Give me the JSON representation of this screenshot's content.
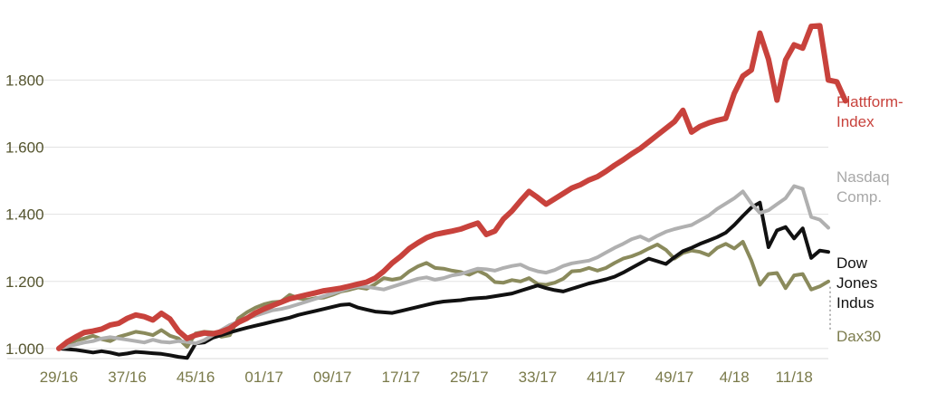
{
  "chart_data": {
    "type": "line",
    "title": "",
    "xlabel": "",
    "ylabel": "",
    "ylim": [
      970,
      1990
    ],
    "y_ticks": [
      1000,
      1200,
      1400,
      1600,
      1800
    ],
    "y_tick_labels": [
      "1.000",
      "1.200",
      "1.400",
      "1.600",
      "1.800"
    ],
    "x_tick_labels": [
      "29/16",
      "37/16",
      "45/16",
      "01/17",
      "09/17",
      "17/17",
      "25/17",
      "33/17",
      "41/17",
      "49/17",
      "4/18",
      "11/18"
    ],
    "x_tick_index": [
      0,
      8,
      16,
      24,
      32,
      40,
      48,
      56,
      64,
      72,
      79,
      86
    ],
    "grid": "horizontal",
    "legend": "right, labels at line ends",
    "series": [
      {
        "name": "Dax30",
        "label_lines": [
          "Dax30"
        ],
        "color": "#8a8a5c",
        "width": 4,
        "values": [
          1000,
          1012,
          1024,
          1030,
          1038,
          1028,
          1022,
          1035,
          1042,
          1050,
          1046,
          1040,
          1055,
          1038,
          1030,
          1005,
          1045,
          1050,
          1048,
          1035,
          1040,
          1090,
          1108,
          1122,
          1132,
          1138,
          1140,
          1160,
          1150,
          1145,
          1150,
          1152,
          1160,
          1170,
          1175,
          1182,
          1178,
          1192,
          1210,
          1205,
          1210,
          1230,
          1245,
          1255,
          1240,
          1238,
          1232,
          1228,
          1220,
          1232,
          1220,
          1198,
          1196,
          1204,
          1200,
          1210,
          1192,
          1190,
          1196,
          1208,
          1230,
          1232,
          1240,
          1232,
          1240,
          1255,
          1268,
          1275,
          1285,
          1298,
          1310,
          1294,
          1268,
          1285,
          1292,
          1288,
          1278,
          1300,
          1312,
          1298,
          1318,
          1262,
          1190,
          1222,
          1225,
          1180,
          1218,
          1222,
          1176,
          1185,
          1200
        ]
      },
      {
        "name": "Dow Jones Indus",
        "label_lines": [
          "Dow",
          "Jones",
          "Indus"
        ],
        "color": "#111111",
        "width": 4,
        "values": [
          1000,
          998,
          996,
          992,
          988,
          992,
          988,
          982,
          985,
          990,
          988,
          986,
          984,
          980,
          975,
          972,
          1015,
          1018,
          1032,
          1040,
          1048,
          1055,
          1062,
          1068,
          1074,
          1080,
          1086,
          1092,
          1100,
          1106,
          1112,
          1118,
          1124,
          1130,
          1132,
          1122,
          1116,
          1110,
          1108,
          1106,
          1112,
          1118,
          1124,
          1130,
          1136,
          1140,
          1142,
          1144,
          1148,
          1150,
          1152,
          1156,
          1160,
          1164,
          1172,
          1180,
          1188,
          1180,
          1174,
          1170,
          1178,
          1186,
          1194,
          1200,
          1206,
          1214,
          1226,
          1240,
          1254,
          1268,
          1260,
          1252,
          1272,
          1290,
          1300,
          1312,
          1322,
          1332,
          1345,
          1368,
          1395,
          1420,
          1435,
          1302,
          1352,
          1362,
          1328,
          1358,
          1270,
          1292,
          1288
        ]
      },
      {
        "name": "Nasdaq Comp.",
        "label_lines": [
          "Nasdaq",
          "Comp."
        ],
        "color": "#b0b0b0",
        "width": 4,
        "values": [
          1000,
          1006,
          1012,
          1018,
          1022,
          1030,
          1034,
          1030,
          1026,
          1022,
          1018,
          1026,
          1020,
          1018,
          1022,
          1020,
          1015,
          1025,
          1040,
          1055,
          1070,
          1080,
          1090,
          1098,
          1106,
          1114,
          1118,
          1124,
          1132,
          1140,
          1148,
          1156,
          1164,
          1172,
          1180,
          1186,
          1184,
          1180,
          1176,
          1184,
          1192,
          1200,
          1208,
          1212,
          1205,
          1210,
          1218,
          1222,
          1230,
          1238,
          1236,
          1232,
          1240,
          1246,
          1250,
          1238,
          1230,
          1226,
          1234,
          1246,
          1254,
          1258,
          1262,
          1272,
          1286,
          1300,
          1312,
          1326,
          1334,
          1322,
          1336,
          1348,
          1356,
          1362,
          1368,
          1382,
          1396,
          1416,
          1432,
          1448,
          1468,
          1432,
          1404,
          1412,
          1430,
          1448,
          1484,
          1476,
          1392,
          1384,
          1360
        ]
      },
      {
        "name": "Plattform-Index",
        "label_lines": [
          "Plattform-",
          "Index"
        ],
        "color": "#c8423c",
        "width": 6,
        "values": [
          1000,
          1020,
          1035,
          1048,
          1052,
          1058,
          1070,
          1075,
          1090,
          1100,
          1095,
          1085,
          1105,
          1088,
          1052,
          1030,
          1040,
          1046,
          1044,
          1050,
          1060,
          1078,
          1090,
          1106,
          1118,
          1128,
          1138,
          1148,
          1154,
          1160,
          1166,
          1172,
          1176,
          1180,
          1186,
          1192,
          1198,
          1210,
          1230,
          1255,
          1275,
          1298,
          1315,
          1330,
          1340,
          1345,
          1350,
          1356,
          1365,
          1374,
          1340,
          1350,
          1386,
          1410,
          1440,
          1468,
          1450,
          1430,
          1446,
          1462,
          1478,
          1488,
          1502,
          1512,
          1528,
          1546,
          1562,
          1580,
          1596,
          1616,
          1636,
          1656,
          1676,
          1710,
          1645,
          1662,
          1672,
          1680,
          1686,
          1760,
          1812,
          1830,
          1940,
          1862,
          1740,
          1860,
          1905,
          1895,
          1960,
          1962,
          1800,
          1795,
          1738
        ]
      }
    ]
  }
}
